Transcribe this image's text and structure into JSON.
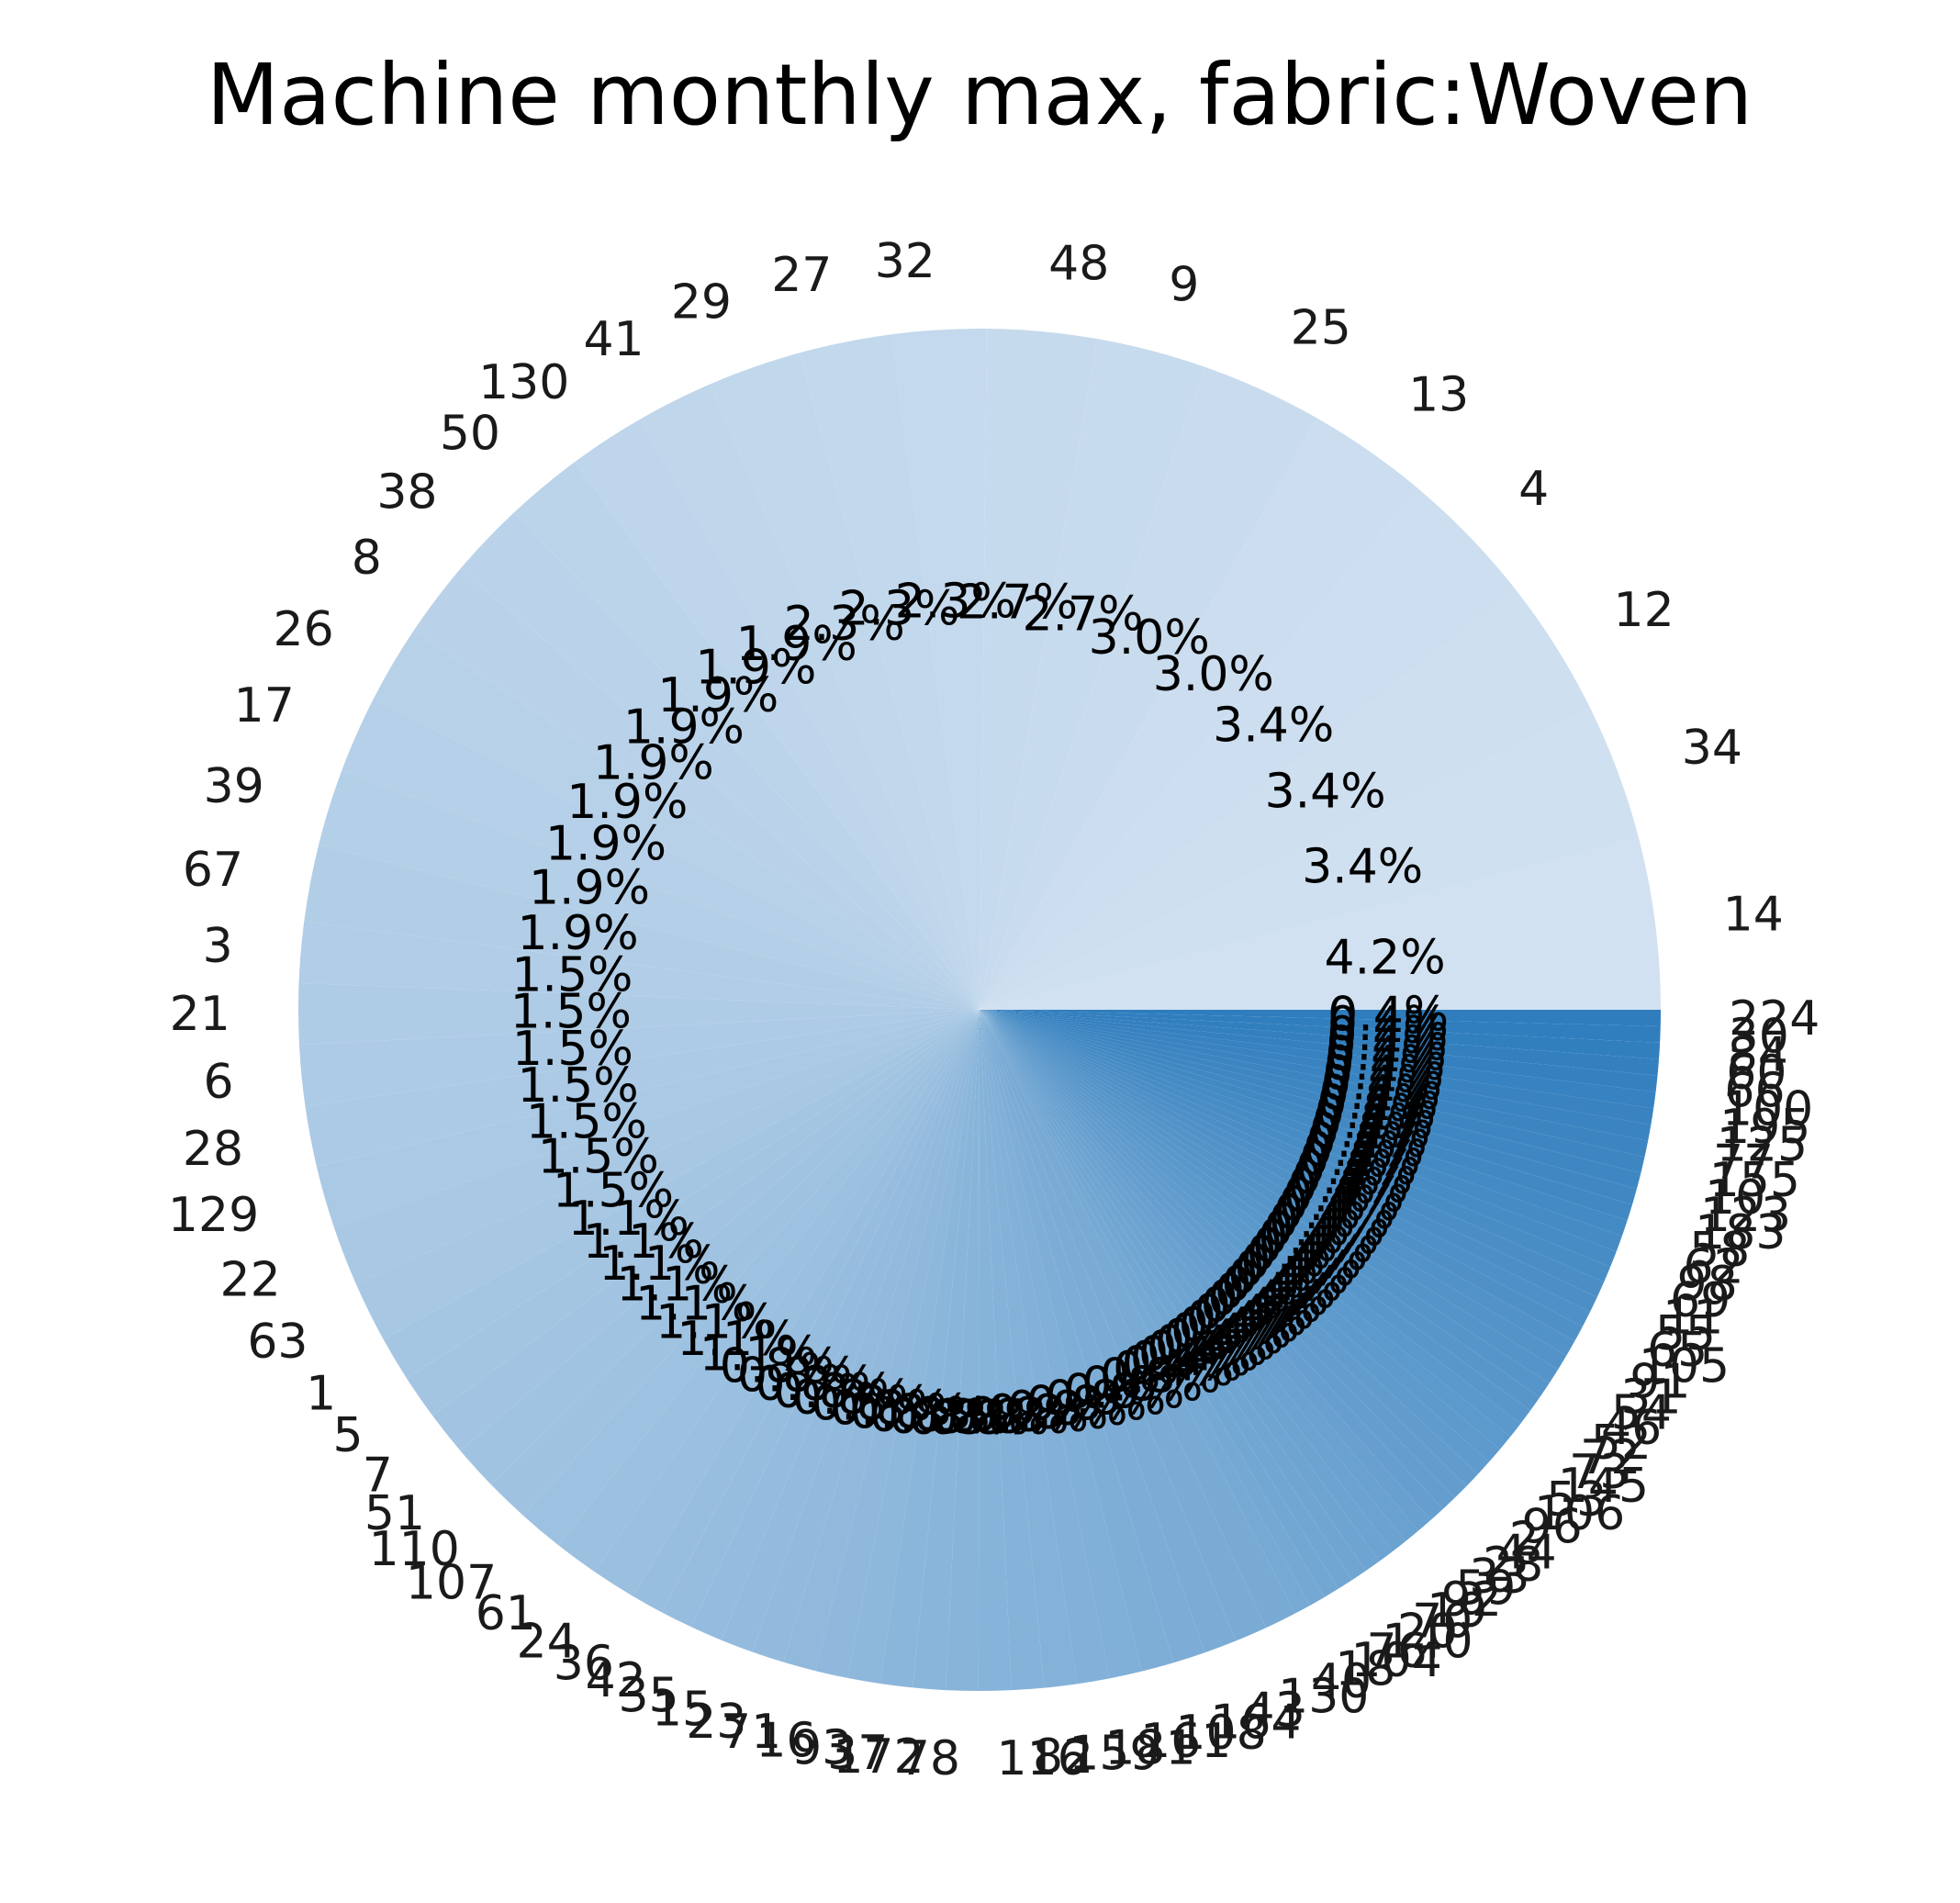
{
  "chart_data": {
    "type": "pie",
    "title": "Machine monthly max, fabric:Woven",
    "start_angle_deg": 0,
    "direction": "counterclockwise",
    "colormap": "Blues",
    "slices": [
      {
        "label": "14",
        "value": 4.2
      },
      {
        "label": "34",
        "value": 3.4
      },
      {
        "label": "12",
        "value": 3.4
      },
      {
        "label": "4",
        "value": 3.4
      },
      {
        "label": "13",
        "value": 3.0
      },
      {
        "label": "25",
        "value": 3.0
      },
      {
        "label": "9",
        "value": 2.7
      },
      {
        "label": "48",
        "value": 2.7
      },
      {
        "label": "32",
        "value": 2.3
      },
      {
        "label": "27",
        "value": 2.3
      },
      {
        "label": "29",
        "value": 2.3
      },
      {
        "label": "41",
        "value": 1.9
      },
      {
        "label": "130",
        "value": 1.9
      },
      {
        "label": "50",
        "value": 1.9
      },
      {
        "label": "38",
        "value": 1.9
      },
      {
        "label": "8",
        "value": 1.9
      },
      {
        "label": "26",
        "value": 1.9
      },
      {
        "label": "17",
        "value": 1.9
      },
      {
        "label": "39",
        "value": 1.9
      },
      {
        "label": "67",
        "value": 1.9
      },
      {
        "label": "3",
        "value": 1.5
      },
      {
        "label": "21",
        "value": 1.5
      },
      {
        "label": "6",
        "value": 1.5
      },
      {
        "label": "28",
        "value": 1.5
      },
      {
        "label": "129",
        "value": 1.5
      },
      {
        "label": "22",
        "value": 1.5
      },
      {
        "label": "63",
        "value": 1.5
      },
      {
        "label": "1",
        "value": 1.1
      },
      {
        "label": "5",
        "value": 1.1
      },
      {
        "label": "7",
        "value": 1.1
      },
      {
        "label": "51",
        "value": 1.1
      },
      {
        "label": "110",
        "value": 1.1
      },
      {
        "label": "107",
        "value": 1.1
      },
      {
        "label": "61",
        "value": 1.1
      },
      {
        "label": "24",
        "value": 1.1
      },
      {
        "label": "36",
        "value": 0.8
      },
      {
        "label": "42",
        "value": 0.8
      },
      {
        "label": "35",
        "value": 0.8
      },
      {
        "label": "15",
        "value": 0.8
      },
      {
        "label": "23",
        "value": 0.8
      },
      {
        "label": "71",
        "value": 0.8
      },
      {
        "label": "16",
        "value": 0.8
      },
      {
        "label": "93",
        "value": 0.8
      },
      {
        "label": "37",
        "value": 0.8
      },
      {
        "label": "172",
        "value": 0.8
      },
      {
        "label": "78",
        "value": 0.8
      },
      {
        "label": "116",
        "value": 0.8
      },
      {
        "label": "82",
        "value": 0.8
      },
      {
        "label": "159",
        "value": 0.8
      },
      {
        "label": "181",
        "value": 0.8
      },
      {
        "label": "161",
        "value": 0.8
      },
      {
        "label": "108",
        "value": 0.8
      },
      {
        "label": "164",
        "value": 0.8
      },
      {
        "label": "43",
        "value": 0.8
      },
      {
        "label": "130",
        "value": 0.8
      },
      {
        "label": "40",
        "value": 0.8
      },
      {
        "label": "18",
        "value": 0.4
      },
      {
        "label": "104",
        "value": 0.4
      },
      {
        "label": "76",
        "value": 0.4
      },
      {
        "label": "140",
        "value": 0.4
      },
      {
        "label": "20",
        "value": 0.4
      },
      {
        "label": "70",
        "value": 0.4
      },
      {
        "label": "19",
        "value": 0.4
      },
      {
        "label": "92",
        "value": 0.4
      },
      {
        "label": "59",
        "value": 0.4
      },
      {
        "label": "33",
        "value": 0.4
      },
      {
        "label": "28",
        "value": 0.4
      },
      {
        "label": "44",
        "value": 0.4
      },
      {
        "label": "2",
        "value": 0.4
      },
      {
        "label": "96",
        "value": 0.4
      },
      {
        "label": "106",
        "value": 0.4
      },
      {
        "label": "53",
        "value": 0.4
      },
      {
        "label": "145",
        "value": 0.4
      },
      {
        "label": "73",
        "value": 0.4
      },
      {
        "label": "72",
        "value": 0.4
      },
      {
        "label": "52",
        "value": 0.4
      },
      {
        "label": "46",
        "value": 0.4
      },
      {
        "label": "54",
        "value": 0.4
      },
      {
        "label": "31",
        "value": 0.4
      },
      {
        "label": "91",
        "value": 0.4
      },
      {
        "label": "105",
        "value": 0.4
      },
      {
        "label": "65",
        "value": 0.4
      },
      {
        "label": "55",
        "value": 0.4
      },
      {
        "label": "11",
        "value": 0.4
      },
      {
        "label": "69",
        "value": 0.4
      },
      {
        "label": "98",
        "value": 0.4
      },
      {
        "label": "62",
        "value": 0.4
      },
      {
        "label": "58",
        "value": 0.4
      },
      {
        "label": "183",
        "value": 0.4
      },
      {
        "label": "123",
        "value": 0.4
      },
      {
        "label": "10",
        "value": 0.4
      },
      {
        "label": "155",
        "value": 0.4
      },
      {
        "label": "77",
        "value": 0.4
      },
      {
        "label": "125",
        "value": 0.4
      },
      {
        "label": "195",
        "value": 0.4
      },
      {
        "label": "100",
        "value": 0.4
      },
      {
        "label": "66",
        "value": 0.4
      },
      {
        "label": "60",
        "value": 0.4
      },
      {
        "label": "84",
        "value": 0.4
      },
      {
        "label": "30",
        "value": 0.4
      },
      {
        "label": "224",
        "value": 0.4
      }
    ]
  }
}
